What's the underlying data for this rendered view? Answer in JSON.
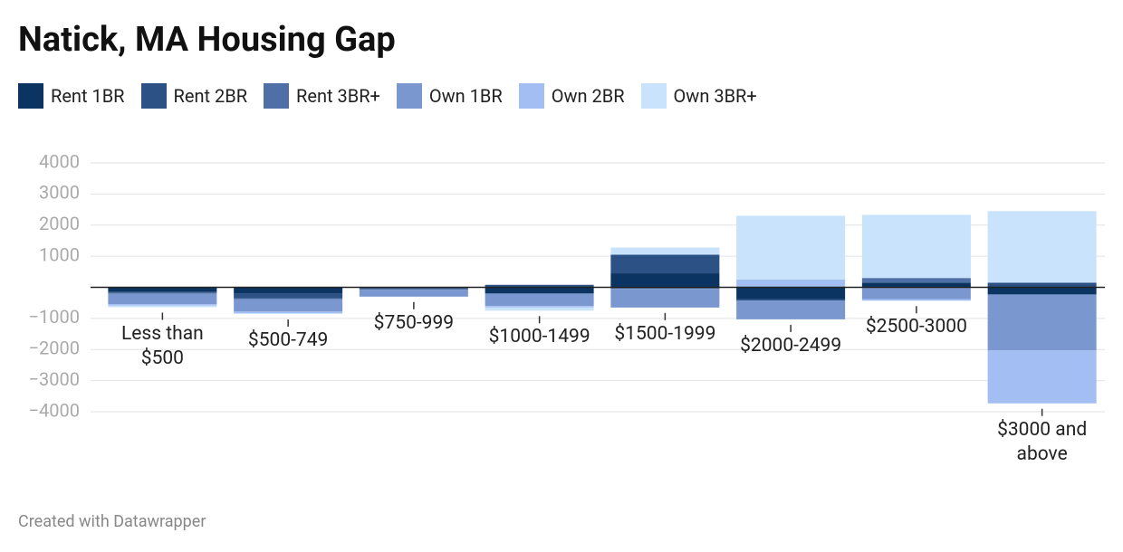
{
  "chart_data": {
    "type": "stacked-bar",
    "title": "Natick, MA Housing Gap",
    "footer": "Created with Datawrapper",
    "categories": [
      "Less than $500",
      "$500-749",
      "$750-999",
      "$1000-1499",
      "$1500-1999",
      "$2000-2499",
      "$2500-3000",
      "$3000 and above"
    ],
    "series": [
      {
        "name": "Rent 1BR",
        "color": "#0b3462",
        "values": [
          -150,
          -200,
          -30,
          -200,
          450,
          -380,
          150,
          -230
        ]
      },
      {
        "name": "Rent 2BR",
        "color": "#2b5185",
        "values": [
          -30,
          -150,
          0,
          80,
          600,
          -50,
          0,
          150
        ]
      },
      {
        "name": "Rent 3BR+",
        "color": "#4f70a6",
        "values": [
          -30,
          -30,
          -50,
          0,
          -50,
          0,
          150,
          0
        ]
      },
      {
        "name": "Own 1BR",
        "color": "#7a98cf",
        "values": [
          -330,
          -400,
          -220,
          -400,
          -600,
          -600,
          -380,
          -1800
        ]
      },
      {
        "name": "Own 2BR",
        "color": "#a3bef2",
        "values": [
          -50,
          -50,
          0,
          -50,
          0,
          250,
          -50,
          -1700
        ]
      },
      {
        "name": "Own 3BR+",
        "color": "#c8e3fb",
        "values": [
          -50,
          -30,
          0,
          -100,
          230,
          2050,
          2030,
          2300
        ]
      }
    ],
    "ylim": [
      -4000,
      4000
    ],
    "yticks": [
      {
        "value": -4000,
        "label": "−4000"
      },
      {
        "value": -3000,
        "label": "−3000"
      },
      {
        "value": -2000,
        "label": "−2000"
      },
      {
        "value": -1000,
        "label": "−1000"
      },
      1000,
      2000,
      3000,
      4000
    ],
    "grid": true
  }
}
